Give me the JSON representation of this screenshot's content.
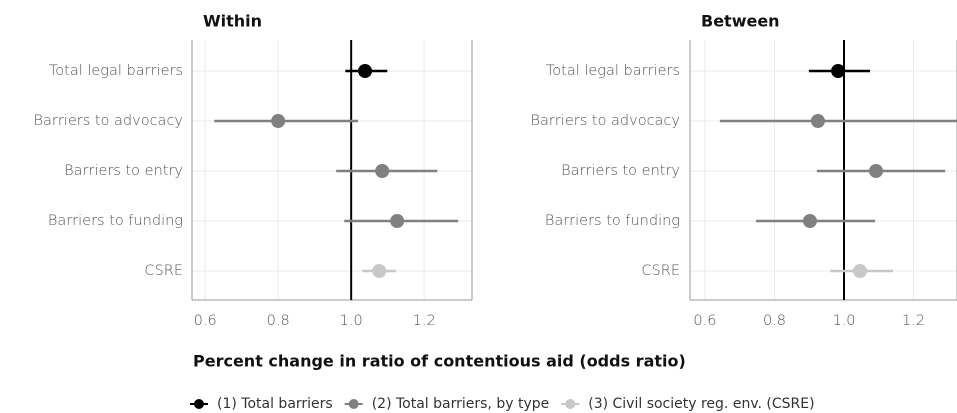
{
  "chart_data": [
    {
      "type": "dot",
      "title": "Within",
      "categories": [
        "Total legal barriers",
        "Barriers to advocacy",
        "Barriers to entry",
        "Barriers to funding",
        "CSRE"
      ],
      "series": [
        {
          "name": "(1) Total barriers",
          "color": "#000000",
          "values": [
            1.038,
            null,
            null,
            null,
            null
          ],
          "lower": [
            0.984,
            null,
            null,
            null,
            null
          ],
          "upper": [
            1.099,
            null,
            null,
            null,
            null
          ]
        },
        {
          "name": "(2) Total barriers, by type",
          "color": "#808080",
          "values": [
            null,
            0.8,
            1.085,
            1.126,
            null
          ],
          "lower": [
            null,
            0.625,
            0.959,
            0.981,
            null
          ],
          "upper": [
            null,
            1.019,
            1.236,
            1.293,
            null
          ]
        },
        {
          "name": "(3) Civil society reg. env. (CSRE)",
          "color": "#c8c8c8",
          "values": [
            null,
            null,
            null,
            null,
            1.077
          ],
          "lower": [
            null,
            null,
            null,
            null,
            1.03
          ],
          "upper": [
            null,
            null,
            null,
            null,
            1.123
          ]
        }
      ],
      "xlim": [
        0.564,
        1.331
      ],
      "xticks": [
        0.6,
        0.8,
        {
          "value": 1,
          "label": "1.0"
        },
        1.2
      ],
      "refline": 1,
      "grid": true
    },
    {
      "type": "dot",
      "title": "Between",
      "categories": [
        "Total legal barriers",
        "Barriers to advocacy",
        "Barriers to entry",
        "Barriers to funding",
        "CSRE"
      ],
      "series": [
        {
          "name": "(1) Total barriers",
          "color": "#000000",
          "values": [
            0.983,
            null,
            null,
            null,
            null
          ],
          "lower": [
            0.899,
            null,
            null,
            null,
            null
          ],
          "upper": [
            1.075,
            null,
            null,
            null,
            null
          ]
        },
        {
          "name": "(2) Total barriers, by type",
          "color": "#808080",
          "values": [
            null,
            0.925,
            1.092,
            0.902,
            null
          ],
          "lower": [
            null,
            0.643,
            0.922,
            0.747,
            null
          ],
          "upper": [
            null,
            1.34,
            1.291,
            1.089,
            null
          ]
        },
        {
          "name": "(3) Civil society reg. env. (CSRE)",
          "color": "#c8c8c8",
          "values": [
            null,
            null,
            null,
            null,
            1.046
          ],
          "lower": [
            null,
            null,
            null,
            null,
            0.96
          ],
          "upper": [
            null,
            null,
            null,
            null,
            1.141
          ]
        }
      ],
      "xlim": [
        0.557,
        1.325
      ],
      "xticks": [
        0.6,
        0.8,
        {
          "value": 1,
          "label": "1.0"
        },
        1.2
      ],
      "refline": 1,
      "grid": true
    }
  ],
  "xlabel": "Percent change in ratio of contentious aid (odds ratio)"
}
